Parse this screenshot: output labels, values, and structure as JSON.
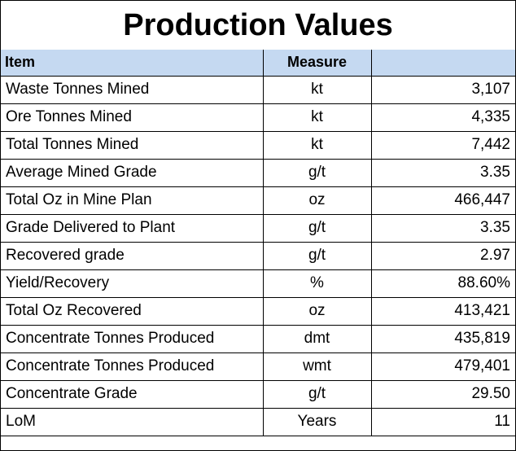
{
  "title": "Production Values",
  "headers": {
    "item": "Item",
    "measure": "Measure",
    "value": ""
  },
  "rows": [
    {
      "item": "Waste Tonnes Mined",
      "measure": "kt",
      "value": "3,107"
    },
    {
      "item": "Ore Tonnes Mined",
      "measure": "kt",
      "value": "4,335"
    },
    {
      "item": "Total Tonnes Mined",
      "measure": "kt",
      "value": "7,442"
    },
    {
      "item": "Average Mined Grade",
      "measure": "g/t",
      "value": "3.35"
    },
    {
      "item": "Total Oz in Mine Plan",
      "measure": "oz",
      "value": "466,447"
    },
    {
      "item": "Grade Delivered to Plant",
      "measure": "g/t",
      "value": "3.35"
    },
    {
      "item": "Recovered grade",
      "measure": "g/t",
      "value": "2.97"
    },
    {
      "item": "Yield/Recovery",
      "measure": "%",
      "value": "88.60%"
    },
    {
      "item": "Total Oz Recovered",
      "measure": "oz",
      "value": "413,421"
    },
    {
      "item": "Concentrate Tonnes Produced",
      "measure": "dmt",
      "value": "435,819"
    },
    {
      "item": "Concentrate Tonnes Produced",
      "measure": "wmt",
      "value": "479,401"
    },
    {
      "item": "Concentrate Grade",
      "measure": "g/t",
      "value": "29.50"
    },
    {
      "item": "LoM",
      "measure": "Years",
      "value": "11"
    }
  ],
  "colors": {
    "header_fill": "#c5d9f1",
    "border": "#000000"
  }
}
